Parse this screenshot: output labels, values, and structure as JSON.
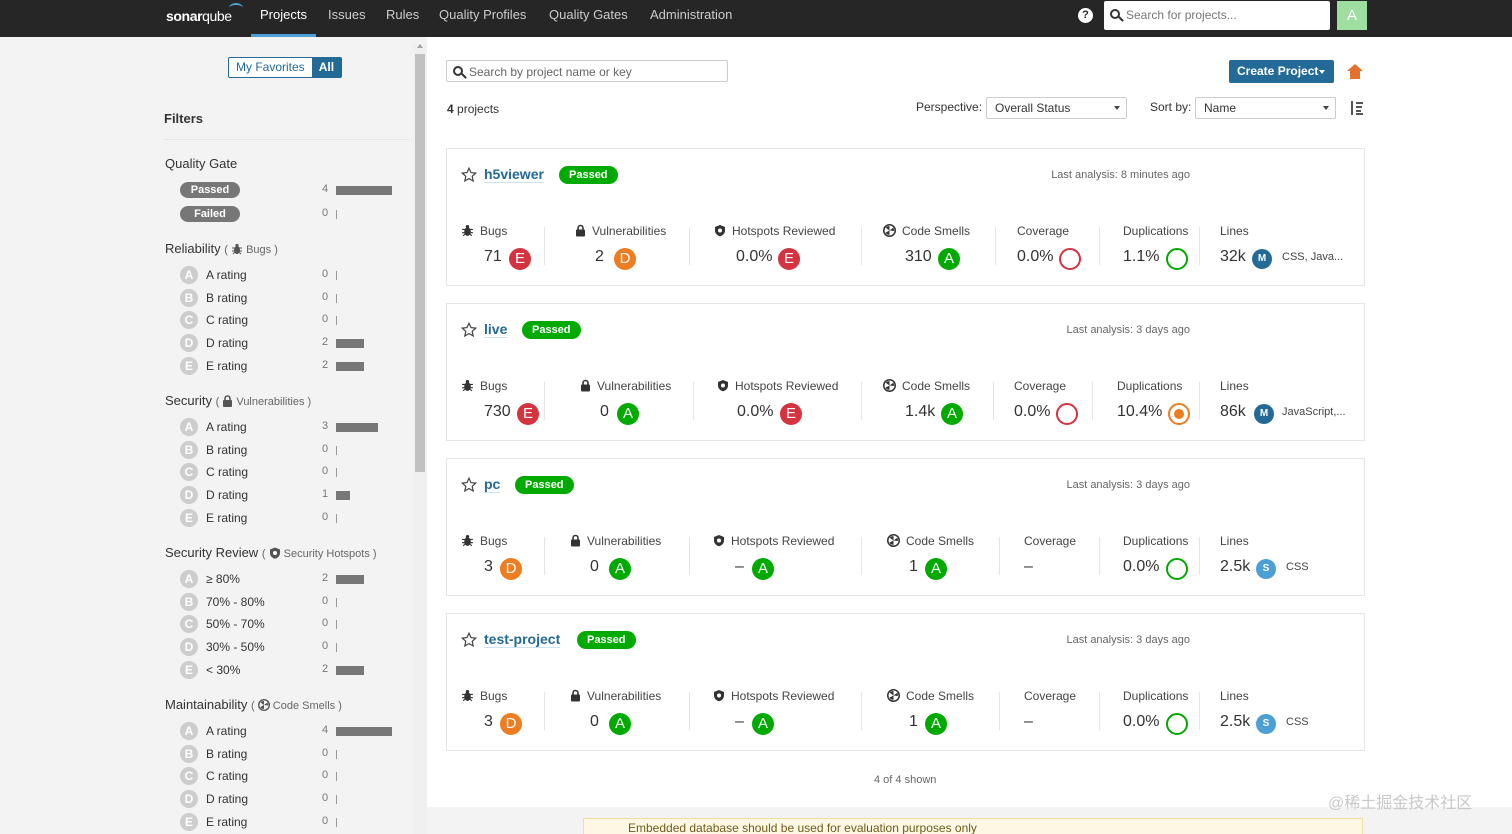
{
  "nav": {
    "logo_prefix": "sonar",
    "logo_suffix": "qube",
    "items": [
      {
        "label": "Projects",
        "active": true
      },
      {
        "label": "Issues"
      },
      {
        "label": "Rules"
      },
      {
        "label": "Quality Profiles"
      },
      {
        "label": "Quality Gates"
      },
      {
        "label": "Administration"
      }
    ],
    "help_icon": "?",
    "search_placeholder": "Search for projects...",
    "avatar_letter": "A",
    "avatar_color": "#9ede9e"
  },
  "sidebar": {
    "favorites_label": "My Favorites",
    "all_label": "All",
    "filters_title": "Filters",
    "quality_gate": {
      "title": "Quality Gate",
      "items": [
        {
          "label": "Passed",
          "count": "4",
          "fraction": 1.0
        },
        {
          "label": "Failed",
          "count": "0",
          "fraction": 0
        }
      ]
    },
    "reliability": {
      "title": "Reliability",
      "sub": "Bugs",
      "items": [
        {
          "rating": "A",
          "label": "A rating",
          "count": "0",
          "fraction": 0
        },
        {
          "rating": "B",
          "label": "B rating",
          "count": "0",
          "fraction": 0
        },
        {
          "rating": "C",
          "label": "C rating",
          "count": "0",
          "fraction": 0
        },
        {
          "rating": "D",
          "label": "D rating",
          "count": "2",
          "fraction": 0.5
        },
        {
          "rating": "E",
          "label": "E rating",
          "count": "2",
          "fraction": 0.5
        }
      ]
    },
    "security": {
      "title": "Security",
      "sub": "Vulnerabilities",
      "items": [
        {
          "rating": "A",
          "label": "A rating",
          "count": "3",
          "fraction": 0.75
        },
        {
          "rating": "B",
          "label": "B rating",
          "count": "0",
          "fraction": 0
        },
        {
          "rating": "C",
          "label": "C rating",
          "count": "0",
          "fraction": 0
        },
        {
          "rating": "D",
          "label": "D rating",
          "count": "1",
          "fraction": 0.25
        },
        {
          "rating": "E",
          "label": "E rating",
          "count": "0",
          "fraction": 0
        }
      ]
    },
    "security_review": {
      "title": "Security Review",
      "sub": "Security Hotspots",
      "items": [
        {
          "rating": "A",
          "label": "≥ 80%",
          "count": "2",
          "fraction": 0.5
        },
        {
          "rating": "B",
          "label": "70% - 80%",
          "count": "0",
          "fraction": 0
        },
        {
          "rating": "C",
          "label": "50% - 70%",
          "count": "0",
          "fraction": 0
        },
        {
          "rating": "D",
          "label": "30% - 50%",
          "count": "0",
          "fraction": 0
        },
        {
          "rating": "E",
          "label": "< 30%",
          "count": "2",
          "fraction": 0.5
        }
      ]
    },
    "maintainability": {
      "title": "Maintainability",
      "sub": "Code Smells",
      "items": [
        {
          "rating": "A",
          "label": "A rating",
          "count": "4",
          "fraction": 1.0
        },
        {
          "rating": "B",
          "label": "B rating",
          "count": "0",
          "fraction": 0
        },
        {
          "rating": "C",
          "label": "C rating",
          "count": "0",
          "fraction": 0
        },
        {
          "rating": "D",
          "label": "D rating",
          "count": "0",
          "fraction": 0
        },
        {
          "rating": "E",
          "label": "E rating",
          "count": "0",
          "fraction": 0
        }
      ]
    }
  },
  "main": {
    "search_placeholder": "Search by project name or key",
    "create_label": "Create Project",
    "projects_count": "4",
    "projects_word": "projects",
    "perspective_label": "Perspective:",
    "perspective_value": "Overall Status",
    "sort_label": "Sort by:",
    "sort_value": "Name",
    "shown": "4 of 4 shown",
    "footer_warning": "Embedded database should be used for evaluation purposes only"
  },
  "rating_colors": {
    "A": "#00aa00",
    "B": "#b0d513",
    "C": "#eabe06",
    "D": "#ed7d20",
    "E": "#d4333f"
  },
  "metric_labels": {
    "bugs": "Bugs",
    "vulns": "Vulnerabilities",
    "hotspots": "Hotspots Reviewed",
    "smells": "Code Smells",
    "coverage": "Coverage",
    "dups": "Duplications",
    "lines": "Lines"
  },
  "projects": [
    {
      "name": "h5viewer",
      "status": "Passed",
      "last_analysis": "Last analysis: 8 minutes ago",
      "bugs": "71",
      "bugs_rating": "E",
      "vulns": "2",
      "vulns_rating": "D",
      "hotspots": "0.0%",
      "hotspots_rating": "E",
      "smells": "310",
      "smells_rating": "A",
      "coverage": "0.0%",
      "coverage_ring": "#d4333f",
      "dups": "1.1%",
      "dups_ring": "#00aa00",
      "lines": "32k",
      "size_badge": "M",
      "size_color": "#236a97",
      "languages": "CSS, Java..."
    },
    {
      "name": "live",
      "status": "Passed",
      "last_analysis": "Last analysis: 3 days ago",
      "bugs": "730",
      "bugs_rating": "E",
      "vulns": "0",
      "vulns_rating": "A",
      "hotspots": "0.0%",
      "hotspots_rating": "E",
      "smells": "1.4k",
      "smells_rating": "A",
      "coverage": "0.0%",
      "coverage_ring": "#d4333f",
      "dups": "10.4%",
      "dups_ring": "#ed7d20",
      "lines": "86k",
      "size_badge": "M",
      "size_color": "#236a97",
      "languages": "JavaScript,..."
    },
    {
      "name": "pc",
      "status": "Passed",
      "last_analysis": "Last analysis: 3 days ago",
      "bugs": "3",
      "bugs_rating": "D",
      "vulns": "0",
      "vulns_rating": "A",
      "hotspots": "–",
      "hotspots_rating": "A",
      "smells": "1",
      "smells_rating": "A",
      "coverage": "–",
      "coverage_ring": "",
      "dups": "0.0%",
      "dups_ring": "#00aa00",
      "lines": "2.5k",
      "size_badge": "S",
      "size_color": "#4b9fd5",
      "languages": "CSS"
    },
    {
      "name": "test-project",
      "status": "Passed",
      "last_analysis": "Last analysis: 3 days ago",
      "bugs": "3",
      "bugs_rating": "D",
      "vulns": "0",
      "vulns_rating": "A",
      "hotspots": "–",
      "hotspots_rating": "A",
      "smells": "1",
      "smells_rating": "A",
      "coverage": "–",
      "coverage_ring": "",
      "dups": "0.0%",
      "dups_ring": "#00aa00",
      "lines": "2.5k",
      "size_badge": "S",
      "size_color": "#4b9fd5",
      "languages": "CSS"
    }
  ],
  "watermark": "@稀土掘金技术社区"
}
